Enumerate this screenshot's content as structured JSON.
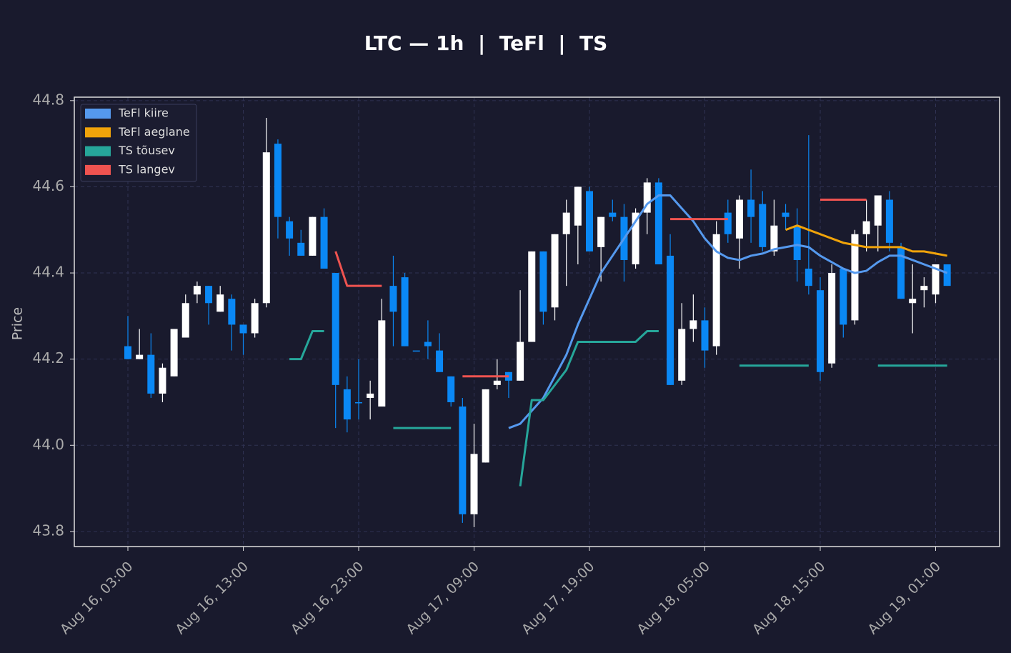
{
  "chart_data": {
    "type": "candlestick",
    "title": "LTC — 1h  |  TeFl  |  TS",
    "y_label": "Price",
    "x": [
      "Aug 16, 03:00",
      "Aug 16, 04:00",
      "Aug 16, 05:00",
      "Aug 16, 06:00",
      "Aug 16, 07:00",
      "Aug 16, 08:00",
      "Aug 16, 09:00",
      "Aug 16, 10:00",
      "Aug 16, 11:00",
      "Aug 16, 12:00",
      "Aug 16, 13:00",
      "Aug 16, 14:00",
      "Aug 16, 15:00",
      "Aug 16, 16:00",
      "Aug 16, 17:00",
      "Aug 16, 18:00",
      "Aug 16, 19:00",
      "Aug 16, 20:00",
      "Aug 16, 21:00",
      "Aug 16, 22:00",
      "Aug 16, 23:00",
      "Aug 17, 00:00",
      "Aug 17, 01:00",
      "Aug 17, 02:00",
      "Aug 17, 03:00",
      "Aug 17, 04:00",
      "Aug 17, 05:00",
      "Aug 17, 06:00",
      "Aug 17, 07:00",
      "Aug 17, 08:00",
      "Aug 17, 09:00",
      "Aug 17, 10:00",
      "Aug 17, 11:00",
      "Aug 17, 12:00",
      "Aug 17, 13:00",
      "Aug 17, 14:00",
      "Aug 17, 15:00",
      "Aug 17, 16:00",
      "Aug 17, 17:00",
      "Aug 17, 18:00",
      "Aug 17, 19:00",
      "Aug 17, 20:00",
      "Aug 17, 21:00",
      "Aug 17, 22:00",
      "Aug 17, 23:00",
      "Aug 18, 00:00",
      "Aug 18, 01:00",
      "Aug 18, 02:00",
      "Aug 18, 03:00",
      "Aug 18, 04:00",
      "Aug 18, 05:00",
      "Aug 18, 06:00",
      "Aug 18, 07:00",
      "Aug 18, 08:00",
      "Aug 18, 09:00",
      "Aug 18, 10:00",
      "Aug 18, 11:00",
      "Aug 18, 12:00",
      "Aug 18, 13:00",
      "Aug 18, 14:00",
      "Aug 18, 15:00",
      "Aug 18, 16:00",
      "Aug 18, 17:00",
      "Aug 18, 18:00",
      "Aug 18, 19:00",
      "Aug 18, 20:00",
      "Aug 18, 21:00",
      "Aug 18, 22:00",
      "Aug 18, 23:00",
      "Aug 19, 00:00",
      "Aug 19, 01:00",
      "Aug 19, 02:00"
    ],
    "xtick_index": [
      0,
      10,
      20,
      30,
      40,
      50,
      60,
      70
    ],
    "open": [
      44.23,
      44.2,
      44.21,
      44.12,
      44.16,
      44.25,
      44.35,
      44.37,
      44.31,
      44.34,
      44.28,
      44.26,
      44.33,
      44.7,
      44.52,
      44.47,
      44.44,
      44.53,
      44.4,
      44.13,
      44.1,
      44.11,
      44.09,
      44.37,
      44.39,
      44.22,
      44.24,
      44.22,
      44.16,
      44.09,
      43.84,
      43.96,
      44.14,
      44.17,
      44.15,
      44.24,
      44.45,
      44.32,
      44.49,
      44.51,
      44.59,
      44.46,
      44.54,
      44.53,
      44.42,
      44.54,
      44.61,
      44.44,
      44.15,
      44.27,
      44.29,
      44.23,
      44.54,
      44.48,
      44.57,
      44.56,
      44.45,
      44.54,
      44.51,
      44.41,
      44.36,
      44.19,
      44.41,
      44.29,
      44.49,
      44.51,
      44.57,
      44.46,
      44.33,
      44.36,
      44.35,
      44.42
    ],
    "high": [
      44.3,
      44.27,
      44.26,
      44.19,
      44.27,
      44.35,
      44.38,
      44.37,
      44.37,
      44.35,
      44.28,
      44.34,
      44.76,
      44.71,
      44.53,
      44.5,
      44.53,
      44.55,
      44.4,
      44.16,
      44.2,
      44.15,
      44.34,
      44.44,
      44.4,
      44.22,
      44.29,
      44.26,
      44.16,
      44.11,
      44.05,
      44.13,
      44.2,
      44.17,
      44.36,
      44.45,
      44.45,
      44.49,
      44.57,
      44.6,
      44.6,
      44.53,
      44.57,
      44.56,
      44.55,
      44.62,
      44.62,
      44.49,
      44.33,
      44.35,
      44.32,
      44.52,
      44.57,
      44.58,
      44.64,
      44.59,
      44.57,
      44.56,
      44.55,
      44.72,
      44.39,
      44.42,
      44.41,
      44.5,
      44.57,
      44.58,
      44.59,
      44.47,
      44.42,
      44.39,
      44.42,
      44.42
    ],
    "low": [
      44.2,
      44.2,
      44.11,
      44.1,
      44.16,
      44.25,
      44.33,
      44.28,
      44.31,
      44.22,
      44.21,
      44.25,
      44.32,
      44.48,
      44.44,
      44.44,
      44.44,
      44.41,
      44.04,
      44.03,
      44.06,
      44.06,
      44.09,
      44.23,
      44.23,
      44.22,
      44.2,
      44.17,
      44.09,
      43.82,
      43.81,
      43.96,
      44.13,
      44.11,
      44.15,
      44.24,
      44.28,
      44.29,
      44.37,
      44.42,
      44.45,
      44.38,
      44.52,
      44.38,
      44.41,
      44.49,
      44.42,
      44.14,
      44.14,
      44.24,
      44.18,
      44.21,
      44.47,
      44.41,
      44.47,
      44.45,
      44.44,
      44.5,
      44.38,
      44.35,
      44.15,
      44.18,
      44.25,
      44.28,
      44.45,
      44.45,
      44.45,
      44.34,
      44.26,
      44.32,
      44.33,
      44.37
    ],
    "close": [
      44.2,
      44.21,
      44.12,
      44.18,
      44.27,
      44.33,
      44.37,
      44.33,
      44.35,
      44.28,
      44.26,
      44.33,
      44.68,
      44.53,
      44.48,
      44.44,
      44.53,
      44.41,
      44.14,
      44.06,
      44.1,
      44.12,
      44.29,
      44.31,
      44.23,
      44.22,
      44.23,
      44.17,
      44.1,
      43.84,
      43.98,
      44.13,
      44.15,
      44.15,
      44.24,
      44.45,
      44.31,
      44.49,
      44.54,
      44.6,
      44.45,
      44.53,
      44.53,
      44.43,
      44.54,
      44.61,
      44.42,
      44.14,
      44.27,
      44.29,
      44.22,
      44.49,
      44.49,
      44.57,
      44.53,
      44.46,
      44.51,
      44.53,
      44.43,
      44.37,
      44.17,
      44.4,
      44.28,
      44.49,
      44.52,
      44.58,
      44.47,
      44.34,
      44.34,
      44.37,
      44.42,
      44.37
    ],
    "up_color": "#ffffff",
    "down_color": "#0a88f5",
    "series": [
      {
        "name": "TeFl kiire",
        "color": "#5599ee",
        "values": [
          null,
          null,
          null,
          null,
          null,
          null,
          null,
          null,
          null,
          null,
          null,
          null,
          null,
          null,
          null,
          null,
          null,
          null,
          null,
          null,
          null,
          null,
          null,
          null,
          null,
          null,
          null,
          null,
          null,
          null,
          null,
          null,
          null,
          44.04,
          44.05,
          44.08,
          44.11,
          44.16,
          44.21,
          44.28,
          44.34,
          44.4,
          44.44,
          44.48,
          44.52,
          44.56,
          44.58,
          44.58,
          44.55,
          44.52,
          44.48,
          44.45,
          44.435,
          44.43,
          44.44,
          44.445,
          44.455,
          44.46,
          44.465,
          44.46,
          44.44,
          44.425,
          44.41,
          44.4,
          44.405,
          44.425,
          44.44,
          44.44,
          44.43,
          44.42,
          44.41,
          44.4
        ]
      },
      {
        "name": "TeFl aeglane",
        "color": "#f0a30a",
        "values": [
          null,
          null,
          null,
          null,
          null,
          null,
          null,
          null,
          null,
          null,
          null,
          null,
          null,
          null,
          null,
          null,
          null,
          null,
          null,
          null,
          null,
          null,
          null,
          null,
          null,
          null,
          null,
          null,
          null,
          null,
          null,
          null,
          null,
          null,
          null,
          null,
          null,
          null,
          null,
          null,
          null,
          null,
          null,
          null,
          null,
          null,
          null,
          null,
          null,
          null,
          null,
          null,
          null,
          null,
          null,
          null,
          null,
          44.5,
          44.51,
          44.5,
          44.49,
          44.48,
          44.47,
          44.465,
          44.46,
          44.46,
          44.46,
          44.46,
          44.45,
          44.45,
          44.445,
          44.44
        ]
      },
      {
        "name": "TS tõusev",
        "color": "#26a69a",
        "values": [
          null,
          null,
          null,
          null,
          null,
          null,
          null,
          null,
          null,
          null,
          null,
          null,
          null,
          null,
          44.2,
          44.2,
          44.265,
          44.265,
          null,
          null,
          null,
          null,
          null,
          44.04,
          44.04,
          44.04,
          44.04,
          44.04,
          44.04,
          null,
          null,
          null,
          null,
          null,
          43.905,
          44.105,
          44.105,
          44.14,
          44.175,
          44.24,
          44.24,
          44.24,
          44.24,
          44.24,
          44.24,
          44.265,
          44.265,
          null,
          null,
          null,
          null,
          null,
          null,
          44.185,
          44.185,
          44.185,
          44.185,
          44.185,
          44.185,
          44.185,
          null,
          null,
          null,
          null,
          null,
          44.185,
          44.185,
          44.185,
          44.185,
          44.185,
          44.185,
          44.185
        ]
      },
      {
        "name": "TS langev",
        "color": "#ef5350",
        "values": [
          null,
          null,
          null,
          null,
          null,
          null,
          null,
          null,
          null,
          null,
          null,
          null,
          null,
          null,
          null,
          null,
          null,
          null,
          44.45,
          44.37,
          44.37,
          44.37,
          44.37,
          null,
          null,
          null,
          null,
          null,
          null,
          44.16,
          44.16,
          44.16,
          44.16,
          44.16,
          null,
          null,
          null,
          null,
          null,
          null,
          null,
          null,
          null,
          null,
          null,
          null,
          null,
          44.525,
          44.525,
          44.525,
          44.525,
          44.525,
          44.525,
          null,
          null,
          null,
          null,
          null,
          null,
          null,
          44.57,
          44.57,
          44.57,
          44.57,
          44.57,
          null,
          null,
          null,
          null,
          null,
          null,
          null
        ]
      }
    ],
    "ylim": [
      43.765,
      44.808
    ],
    "yticks": [
      43.8,
      {
        "value": 44,
        "label": "44.0"
      },
      44.2,
      44.4,
      44.6,
      44.8
    ],
    "grid": true,
    "legend": "upper left"
  }
}
